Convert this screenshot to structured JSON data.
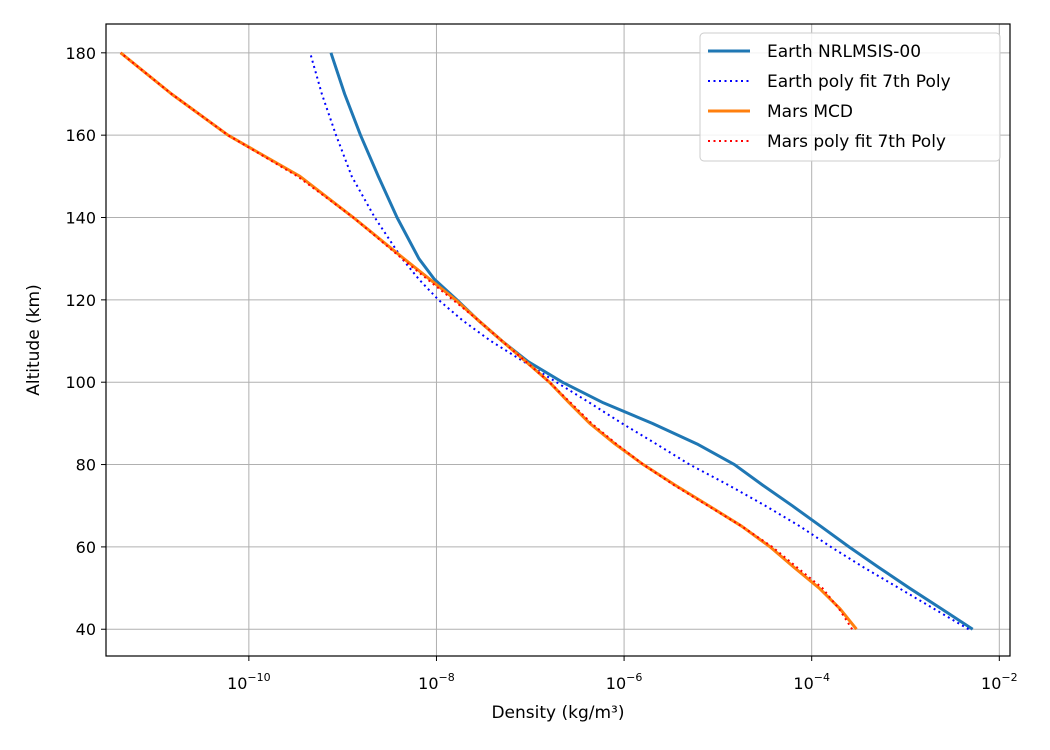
{
  "chart_data": {
    "type": "line",
    "xlabel": "Density (kg/m³)",
    "ylabel": "Altitude (km)",
    "xscale": "log",
    "xlim": [
      3e-12,
      0.013
    ],
    "ylim": [
      33.5,
      187
    ],
    "x_ticks": [
      {
        "value": 1e-10,
        "base": "10",
        "exp": "−10"
      },
      {
        "value": 1e-08,
        "base": "10",
        "exp": "−8"
      },
      {
        "value": 1e-06,
        "base": "10",
        "exp": "−6"
      },
      {
        "value": 0.0001,
        "base": "10",
        "exp": "−4"
      },
      {
        "value": 0.01,
        "base": "10",
        "exp": "−2"
      }
    ],
    "y_ticks": [
      {
        "value": 40,
        "label": "40"
      },
      {
        "value": 60,
        "label": "60"
      },
      {
        "value": 80,
        "label": "80"
      },
      {
        "value": 100,
        "label": "100"
      },
      {
        "value": 120,
        "label": "120"
      },
      {
        "value": 140,
        "label": "140"
      },
      {
        "value": 160,
        "label": "160"
      },
      {
        "value": 180,
        "label": "180"
      }
    ],
    "grid": true,
    "legend_position": "top-right",
    "series": [
      {
        "name": "Earth NRLMSIS-00",
        "color": "#1f77b4",
        "style": "solid",
        "points": [
          {
            "alt": 40,
            "density": 0.0052
          },
          {
            "alt": 45,
            "density": 0.0024
          },
          {
            "alt": 50,
            "density": 0.0011
          },
          {
            "alt": 55,
            "density": 0.00052
          },
          {
            "alt": 60,
            "density": 0.00025
          },
          {
            "alt": 65,
            "density": 0.000125
          },
          {
            "alt": 70,
            "density": 6.2e-05
          },
          {
            "alt": 75,
            "density": 3e-05
          },
          {
            "alt": 80,
            "density": 1.5e-05
          },
          {
            "alt": 85,
            "density": 6e-06
          },
          {
            "alt": 90,
            "density": 2e-06
          },
          {
            "alt": 95,
            "density": 6e-07
          },
          {
            "alt": 100,
            "density": 2.2e-07
          },
          {
            "alt": 105,
            "density": 9.5e-08
          },
          {
            "alt": 110,
            "density": 5e-08
          },
          {
            "alt": 115,
            "density": 2.8e-08
          },
          {
            "alt": 120,
            "density": 1.65e-08
          },
          {
            "alt": 125,
            "density": 9.5e-09
          },
          {
            "alt": 130,
            "density": 6.5e-09
          },
          {
            "alt": 140,
            "density": 3.8e-09
          },
          {
            "alt": 150,
            "density": 2.4e-09
          },
          {
            "alt": 160,
            "density": 1.55e-09
          },
          {
            "alt": 170,
            "density": 1.05e-09
          },
          {
            "alt": 180,
            "density": 7.5e-10
          }
        ]
      },
      {
        "name": "Earth poly fit 7th Poly",
        "color": "#0000ff",
        "style": "dotted",
        "points": [
          {
            "alt": 40,
            "density": 0.0047
          },
          {
            "alt": 45,
            "density": 0.002
          },
          {
            "alt": 50,
            "density": 0.00085
          },
          {
            "alt": 55,
            "density": 0.00036
          },
          {
            "alt": 60,
            "density": 0.00016
          },
          {
            "alt": 65,
            "density": 7.5e-05
          },
          {
            "alt": 70,
            "density": 3.2e-05
          },
          {
            "alt": 75,
            "density": 1.3e-05
          },
          {
            "alt": 80,
            "density": 5e-06
          },
          {
            "alt": 85,
            "density": 2.2e-06
          },
          {
            "alt": 90,
            "density": 9.5e-07
          },
          {
            "alt": 95,
            "density": 4.3e-07
          },
          {
            "alt": 100,
            "density": 1.9e-07
          },
          {
            "alt": 105,
            "density": 8.5e-08
          },
          {
            "alt": 110,
            "density": 3.8e-08
          },
          {
            "alt": 115,
            "density": 1.9e-08
          },
          {
            "alt": 120,
            "density": 1.05e-08
          },
          {
            "alt": 125,
            "density": 6.5e-09
          },
          {
            "alt": 130,
            "density": 4.3e-09
          },
          {
            "alt": 140,
            "density": 2.2e-09
          },
          {
            "alt": 150,
            "density": 1.25e-09
          },
          {
            "alt": 160,
            "density": 8.5e-10
          },
          {
            "alt": 170,
            "density": 6e-10
          },
          {
            "alt": 180,
            "density": 4.5e-10
          }
        ]
      },
      {
        "name": "Mars MCD",
        "color": "#ff7f0e",
        "style": "solid",
        "points": [
          {
            "alt": 40,
            "density": 0.0003
          },
          {
            "alt": 45,
            "density": 0.0002
          },
          {
            "alt": 50,
            "density": 0.00012
          },
          {
            "alt": 55,
            "density": 6.5e-05
          },
          {
            "alt": 60,
            "density": 3.6e-05
          },
          {
            "alt": 65,
            "density": 1.8e-05
          },
          {
            "alt": 70,
            "density": 8e-06
          },
          {
            "alt": 75,
            "density": 3.5e-06
          },
          {
            "alt": 80,
            "density": 1.6e-06
          },
          {
            "alt": 85,
            "density": 8e-07
          },
          {
            "alt": 90,
            "density": 4.3e-07
          },
          {
            "alt": 95,
            "density": 2.6e-07
          },
          {
            "alt": 100,
            "density": 1.6e-07
          },
          {
            "alt": 105,
            "density": 9e-08
          },
          {
            "alt": 110,
            "density": 5e-08
          },
          {
            "alt": 115,
            "density": 2.8e-08
          },
          {
            "alt": 120,
            "density": 1.6e-08
          },
          {
            "alt": 125,
            "density": 8.5e-09
          },
          {
            "alt": 130,
            "density": 4.5e-09
          },
          {
            "alt": 140,
            "density": 1.3e-09
          },
          {
            "alt": 150,
            "density": 3.5e-10
          },
          {
            "alt": 160,
            "density": 6e-11
          },
          {
            "alt": 170,
            "density": 1.5e-11
          },
          {
            "alt": 180,
            "density": 4.3e-12
          }
        ]
      },
      {
        "name": "Mars poly fit 7th Poly",
        "color": "#ff0000",
        "style": "dotted",
        "points": [
          {
            "alt": 40,
            "density": 0.00027
          },
          {
            "alt": 45,
            "density": 0.000195
          },
          {
            "alt": 50,
            "density": 0.00013
          },
          {
            "alt": 55,
            "density": 7e-05
          },
          {
            "alt": 60,
            "density": 3.8e-05
          },
          {
            "alt": 65,
            "density": 1.8e-05
          },
          {
            "alt": 70,
            "density": 7.8e-06
          },
          {
            "alt": 75,
            "density": 3.4e-06
          },
          {
            "alt": 80,
            "density": 1.6e-06
          },
          {
            "alt": 85,
            "density": 8.3e-07
          },
          {
            "alt": 90,
            "density": 4.5e-07
          },
          {
            "alt": 95,
            "density": 2.7e-07
          },
          {
            "alt": 100,
            "density": 1.6e-07
          },
          {
            "alt": 105,
            "density": 9e-08
          },
          {
            "alt": 110,
            "density": 5e-08
          },
          {
            "alt": 115,
            "density": 2.8e-08
          },
          {
            "alt": 120,
            "density": 1.5e-08
          },
          {
            "alt": 125,
            "density": 8e-09
          },
          {
            "alt": 130,
            "density": 4.3e-09
          },
          {
            "alt": 140,
            "density": 1.3e-09
          },
          {
            "alt": 150,
            "density": 3.3e-10
          },
          {
            "alt": 160,
            "density": 6e-11
          },
          {
            "alt": 170,
            "density": 1.5e-11
          },
          {
            "alt": 180,
            "density": 4.3e-12
          }
        ]
      }
    ]
  }
}
